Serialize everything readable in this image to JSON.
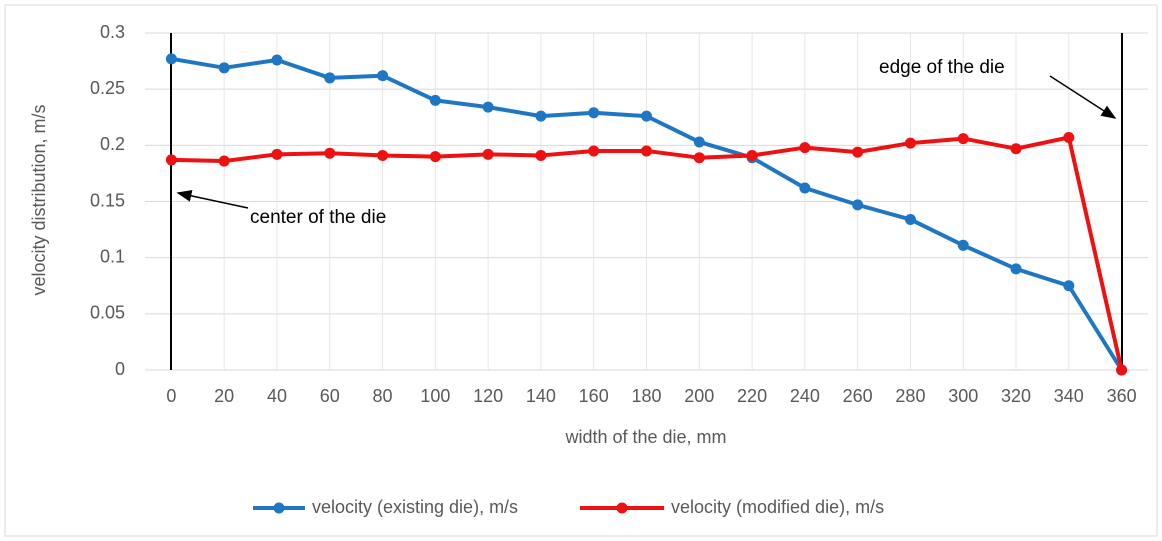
{
  "chart_data": {
    "type": "line",
    "x": [
      0,
      20,
      40,
      60,
      80,
      100,
      120,
      140,
      160,
      180,
      200,
      220,
      240,
      260,
      280,
      300,
      320,
      340,
      360
    ],
    "series": [
      {
        "name": "velocity (existing die), m/s",
        "color": "#1f77c4",
        "values": [
          0.277,
          0.269,
          0.276,
          0.26,
          0.262,
          0.24,
          0.234,
          0.226,
          0.229,
          0.226,
          0.203,
          0.189,
          0.162,
          0.147,
          0.134,
          0.111,
          0.09,
          0.075,
          0
        ]
      },
      {
        "name": "velocity (modified die), m/s",
        "color": "#ee1111",
        "values": [
          0.187,
          0.186,
          0.192,
          0.193,
          0.191,
          0.19,
          0.192,
          0.191,
          0.195,
          0.195,
          0.189,
          0.191,
          0.198,
          0.194,
          0.202,
          0.206,
          0.197,
          0.207,
          0
        ]
      }
    ],
    "xlabel": "width of the die, mm",
    "ylabel": "velocity distribution, m/s",
    "xlim": [
      -10,
      370
    ],
    "xticks": [
      0,
      20,
      40,
      60,
      80,
      100,
      120,
      140,
      160,
      180,
      200,
      220,
      240,
      260,
      280,
      300,
      320,
      340,
      360
    ],
    "ylim": [
      0,
      0.3
    ],
    "yticks": [
      0,
      0.05,
      0.1,
      0.15,
      0.2,
      0.25,
      0.3
    ],
    "grid": true,
    "legend": "bottom",
    "annotations": [
      "center of the die",
      "edge of the die"
    ]
  }
}
